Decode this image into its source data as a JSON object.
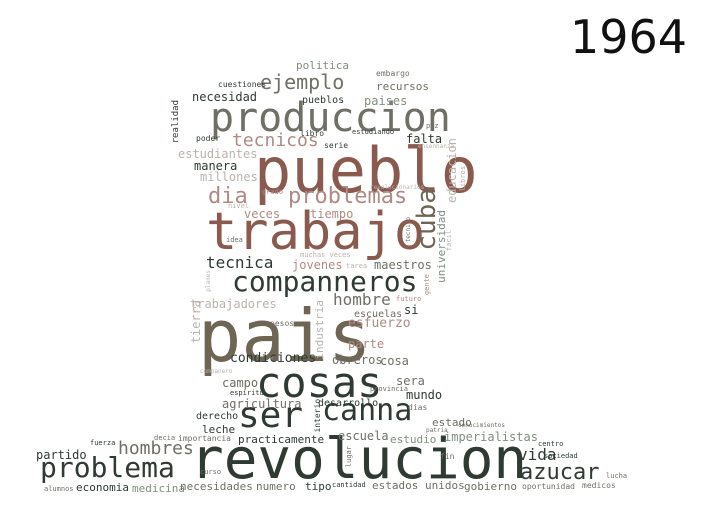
{
  "title": "1964",
  "palette": {
    "dark": "#2f3a33",
    "brown": "#8a5a4f",
    "taupe": "#6e6555",
    "gray": "#6f6f66",
    "rose": "#b08a84",
    "sage": "#7f8f7f",
    "light": "#b9b3ac"
  },
  "words": [
    {
      "text": "revolucion"
    },
    {
      "text": "pais"
    },
    {
      "text": "trabajo"
    },
    {
      "text": "pueblo"
    },
    {
      "text": "produccion"
    },
    {
      "text": "cosas"
    },
    {
      "text": "companneros"
    },
    {
      "text": "problema"
    },
    {
      "text": "ser"
    },
    {
      "text": "canna"
    },
    {
      "text": "problemas"
    },
    {
      "text": "azucar"
    },
    {
      "text": "cuba"
    },
    {
      "text": "ejemplo"
    },
    {
      "text": "hombres"
    },
    {
      "text": "tecnicos"
    },
    {
      "text": "dia"
    },
    {
      "text": "tecnica"
    },
    {
      "text": "hombre"
    },
    {
      "text": "vida"
    },
    {
      "text": "condiciones"
    },
    {
      "text": "esfuerzo"
    },
    {
      "text": "jovenes"
    },
    {
      "text": "maestros"
    },
    {
      "text": "trabajadores"
    },
    {
      "text": "escuela"
    },
    {
      "text": "imperialistas"
    },
    {
      "text": "agricultura"
    },
    {
      "text": "tierra"
    },
    {
      "text": "industria"
    },
    {
      "text": "universidad"
    },
    {
      "text": "educacion"
    },
    {
      "text": "necesidad"
    },
    {
      "text": "pueblos"
    },
    {
      "text": "paises"
    },
    {
      "text": "recursos"
    },
    {
      "text": "politica"
    },
    {
      "text": "embargo"
    },
    {
      "text": "cuestiones"
    },
    {
      "text": "realidad"
    },
    {
      "text": "poder"
    },
    {
      "text": "libro"
    },
    {
      "text": "estudiando"
    },
    {
      "text": "paz"
    },
    {
      "text": "ensennanza"
    },
    {
      "text": "serie"
    },
    {
      "text": "falta"
    },
    {
      "text": "estudiantes"
    },
    {
      "text": "manera"
    },
    {
      "text": "millones"
    },
    {
      "text": "veces"
    },
    {
      "text": "tiempo"
    },
    {
      "text": "grado"
    },
    {
      "text": "nivel"
    },
    {
      "text": "revolucionarios"
    },
    {
      "text": "libros"
    },
    {
      "text": "idea"
    },
    {
      "text": "tecnico"
    },
    {
      "text": "facil"
    },
    {
      "text": "muchas veces"
    },
    {
      "text": "tarea"
    },
    {
      "text": "gente"
    },
    {
      "text": "futuro"
    },
    {
      "text": "pesos"
    },
    {
      "text": "escuelas"
    },
    {
      "text": "si"
    },
    {
      "text": "parte"
    },
    {
      "text": "obreros"
    },
    {
      "text": "cosa"
    },
    {
      "text": "companero"
    },
    {
      "text": "campo"
    },
    {
      "text": "espiritu"
    },
    {
      "text": "derecho"
    },
    {
      "text": "leche"
    },
    {
      "text": "practicamente"
    },
    {
      "text": "desarrollo"
    },
    {
      "text": "mundo"
    },
    {
      "text": "sera"
    },
    {
      "text": "provincia"
    },
    {
      "text": "dias"
    },
    {
      "text": "estado"
    },
    {
      "text": "conocimientos"
    },
    {
      "text": "patria"
    },
    {
      "text": "estudio"
    },
    {
      "text": "interior"
    },
    {
      "text": "centro"
    },
    {
      "text": "sociedad"
    },
    {
      "text": "fuerza"
    },
    {
      "text": "decia"
    },
    {
      "text": "importancia"
    },
    {
      "text": "partido"
    },
    {
      "text": "curso"
    },
    {
      "text": "lugar"
    },
    {
      "text": "fin"
    },
    {
      "text": "lucha"
    },
    {
      "text": "alumnos"
    },
    {
      "text": "economia"
    },
    {
      "text": "medicina"
    },
    {
      "text": "necesidades"
    },
    {
      "text": "numero"
    },
    {
      "text": "tipo"
    },
    {
      "text": "cantidad"
    },
    {
      "text": "estados unidos"
    },
    {
      "text": "gobierno"
    },
    {
      "text": "oportunidad"
    },
    {
      "text": "medicos"
    },
    {
      "text": "planes"
    }
  ]
}
